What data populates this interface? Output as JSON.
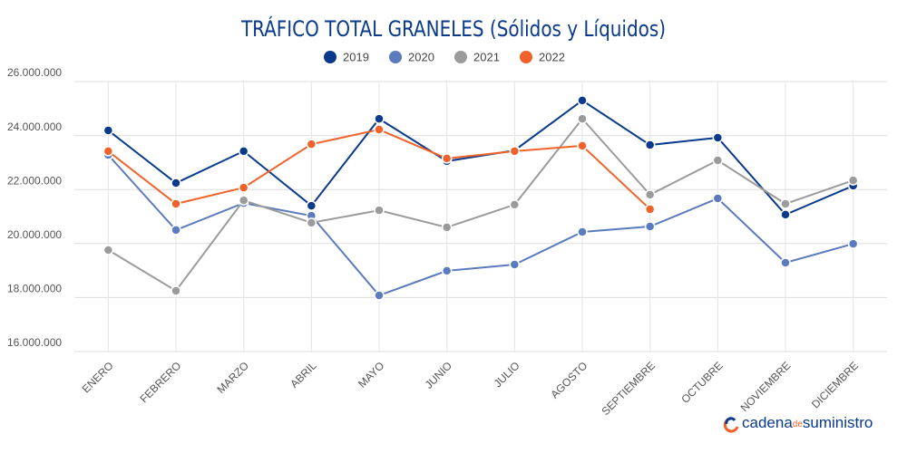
{
  "chart_data": {
    "type": "line",
    "title": "TRÁFICO TOTAL GRANELES (Sólidos y Líquidos)",
    "categories": [
      "ENERO",
      "FEBRERO",
      "MARZO",
      "ABRIL",
      "MAYO",
      "JUNIO",
      "JULIO",
      "AGOSTO",
      "SEPTIEMBRE",
      "OCTUBRE",
      "NOVIEMBRE",
      "DICIEMBRE"
    ],
    "series": [
      {
        "name": "2019",
        "color": "#0a3a8c",
        "values": [
          24190000,
          22240000,
          23420000,
          21400000,
          24620000,
          23050000,
          23450000,
          25300000,
          23650000,
          23920000,
          21070000,
          22140000
        ]
      },
      {
        "name": "2020",
        "color": "#5a7bbd",
        "values": [
          23280000,
          20500000,
          21500000,
          21030000,
          18080000,
          18990000,
          19220000,
          20430000,
          20630000,
          21670000,
          19290000,
          19990000
        ]
      },
      {
        "name": "2021",
        "color": "#9b9b9b",
        "values": [
          19760000,
          18250000,
          21600000,
          20770000,
          21230000,
          20600000,
          21440000,
          24620000,
          21810000,
          23080000,
          21470000,
          22340000
        ]
      },
      {
        "name": "2022",
        "color": "#f0622a",
        "values": [
          23420000,
          21470000,
          22070000,
          23680000,
          24220000,
          23150000,
          23420000,
          23620000,
          21270000,
          null,
          null,
          null
        ]
      }
    ],
    "ylim": [
      16000000,
      26000000
    ],
    "yticks": [
      {
        "value": 16000000,
        "label": "16.000.000"
      },
      {
        "value": 18000000,
        "label": "18.000.000"
      },
      {
        "value": 20000000,
        "label": "20.000.000"
      },
      {
        "value": 22000000,
        "label": "22.000.000"
      },
      {
        "value": 24000000,
        "label": "24.000.000"
      },
      {
        "value": 26000000,
        "label": "26.000.000"
      }
    ],
    "grid": true,
    "legend": "top"
  },
  "logo": {
    "brand": "cadena",
    "joiner": "de",
    "suffix": "suministro"
  }
}
